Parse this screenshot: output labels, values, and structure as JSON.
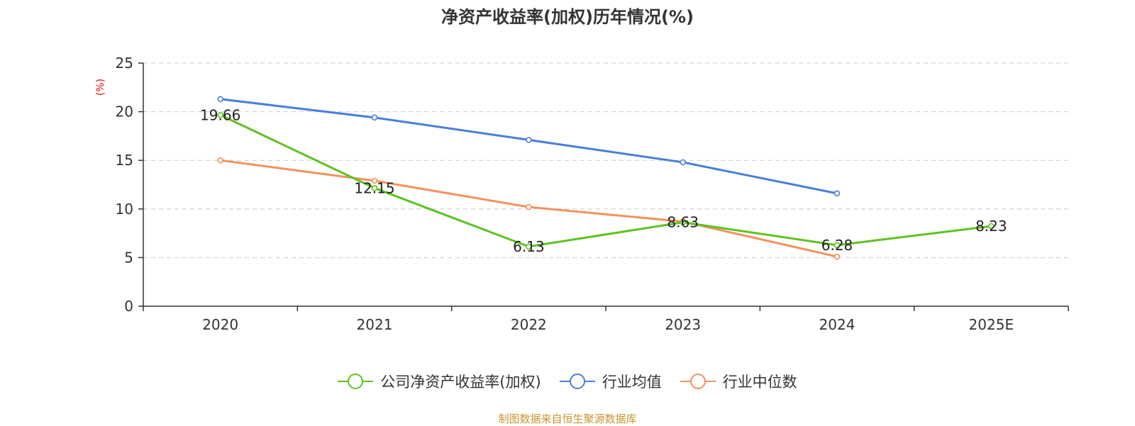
{
  "chart_data": {
    "type": "line",
    "title": "净资产收益率(加权)历年情况(%)",
    "ylabel": "(%)",
    "xlabel": "",
    "categories": [
      "2020",
      "2021",
      "2022",
      "2023",
      "2024",
      "2025E"
    ],
    "ylim": [
      0,
      25
    ],
    "yticks": [
      0,
      5,
      10,
      15,
      20,
      25
    ],
    "grid": true,
    "legend_position": "bottom",
    "series": [
      {
        "name": "公司净资产收益率(加权)",
        "color": "#5cc31e",
        "values": [
          19.66,
          12.15,
          6.13,
          8.63,
          6.28,
          8.23
        ],
        "labels": [
          "19.66",
          "12.15",
          "6.13",
          "8.63",
          "6.28",
          "8.23"
        ]
      },
      {
        "name": "行业均值",
        "color": "#4a7fdb",
        "values": [
          21.3,
          19.4,
          17.1,
          14.8,
          11.6,
          null
        ]
      },
      {
        "name": "行业中位数",
        "color": "#f4915c",
        "values": [
          15.0,
          12.9,
          10.2,
          8.7,
          5.1,
          null
        ]
      }
    ],
    "source": "制图数据来自恒生聚源数据库"
  },
  "colors": {
    "ylabel": "#ff0000",
    "source": "#c8962f",
    "axis": "#333333",
    "grid": "#cccccc"
  }
}
